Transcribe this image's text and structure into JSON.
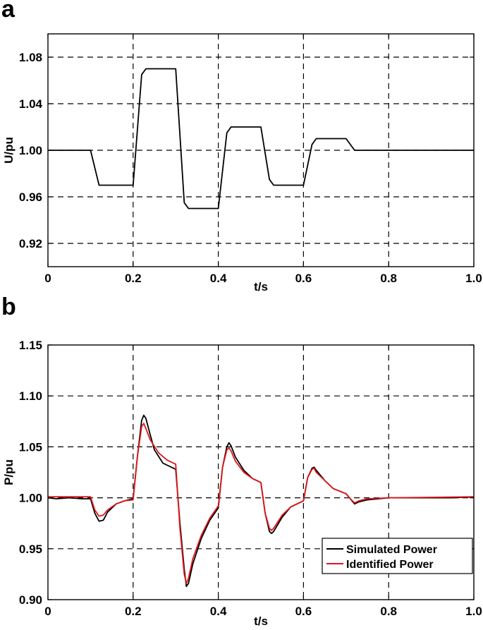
{
  "panels": {
    "a": {
      "letter": "a"
    },
    "b": {
      "letter": "b"
    }
  },
  "colors": {
    "simulated": "#000000",
    "identified": "#e0151b",
    "grid": "#000000"
  },
  "chart_data": [
    {
      "type": "line",
      "title": "",
      "xlabel": "t/s",
      "ylabel": "U/pu",
      "xlim": [
        0,
        1.0
      ],
      "ylim": [
        0.9,
        1.1
      ],
      "xticks": [
        "0",
        "0.2",
        "0.4",
        "0.6",
        "0.8",
        "1.0"
      ],
      "yticks": [
        "0.92",
        "0.96",
        "1.00",
        "1.04",
        "1.08"
      ],
      "grid": true,
      "series": [
        {
          "x": [
            0,
            0.1,
            0.12,
            0.2,
            0.22,
            0.23,
            0.3,
            0.32,
            0.33,
            0.4,
            0.42,
            0.43,
            0.5,
            0.52,
            0.53,
            0.6,
            0.62,
            0.63,
            0.7,
            0.72,
            0.8,
            1.0
          ],
          "y": [
            1.0,
            1.0,
            0.97,
            0.97,
            1.065,
            1.07,
            1.07,
            0.955,
            0.95,
            0.95,
            1.015,
            1.02,
            1.02,
            0.975,
            0.97,
            0.97,
            1.005,
            1.01,
            1.01,
            1.0,
            1.0,
            1.0
          ]
        }
      ]
    },
    {
      "type": "line",
      "title": "",
      "xlabel": "t/s",
      "ylabel": "P/pu",
      "xlim": [
        0,
        1.0
      ],
      "ylim": [
        0.9,
        1.15
      ],
      "xticks": [
        "0",
        "0.2",
        "0.4",
        "0.6",
        "0.8",
        "1.0"
      ],
      "yticks": [
        "0.90",
        "0.95",
        "1.00",
        "1.05",
        "1.10",
        "1.15"
      ],
      "grid": true,
      "legend_position": "bottom-right",
      "series": [
        {
          "name": "Simulated Power",
          "x": [
            0,
            0.02,
            0.05,
            0.08,
            0.1,
            0.11,
            0.12,
            0.13,
            0.14,
            0.16,
            0.18,
            0.2,
            0.21,
            0.22,
            0.225,
            0.23,
            0.24,
            0.25,
            0.27,
            0.3,
            0.31,
            0.32,
            0.325,
            0.33,
            0.34,
            0.36,
            0.38,
            0.4,
            0.41,
            0.42,
            0.425,
            0.43,
            0.44,
            0.46,
            0.48,
            0.5,
            0.51,
            0.52,
            0.525,
            0.53,
            0.55,
            0.57,
            0.6,
            0.61,
            0.62,
            0.625,
            0.63,
            0.65,
            0.67,
            0.7,
            0.71,
            0.72,
            0.73,
            0.75,
            0.8,
            0.85,
            0.9,
            0.95,
            1.0
          ],
          "y": [
            1.0,
            0.999,
            1.0,
            0.999,
            0.999,
            0.985,
            0.977,
            0.978,
            0.986,
            0.994,
            0.997,
            0.999,
            1.04,
            1.076,
            1.081,
            1.078,
            1.062,
            1.047,
            1.034,
            1.028,
            0.975,
            0.93,
            0.913,
            0.916,
            0.935,
            0.96,
            0.978,
            0.99,
            1.03,
            1.05,
            1.054,
            1.051,
            1.04,
            1.027,
            1.019,
            1.015,
            0.985,
            0.967,
            0.965,
            0.967,
            0.981,
            0.991,
            0.997,
            1.02,
            1.029,
            1.03,
            1.027,
            1.017,
            1.009,
            1.004,
            0.999,
            0.994,
            0.996,
            0.998,
            1.0,
            1.0,
            1.0,
            1.0,
            1.001
          ]
        },
        {
          "name": "Identified Power",
          "x": [
            0,
            0.05,
            0.1,
            0.11,
            0.12,
            0.13,
            0.14,
            0.16,
            0.18,
            0.2,
            0.21,
            0.22,
            0.225,
            0.23,
            0.24,
            0.26,
            0.28,
            0.3,
            0.31,
            0.32,
            0.325,
            0.33,
            0.34,
            0.36,
            0.38,
            0.4,
            0.41,
            0.42,
            0.425,
            0.43,
            0.44,
            0.46,
            0.48,
            0.5,
            0.51,
            0.52,
            0.525,
            0.53,
            0.55,
            0.57,
            0.6,
            0.61,
            0.62,
            0.625,
            0.63,
            0.65,
            0.67,
            0.7,
            0.71,
            0.72,
            0.73,
            0.75,
            0.8,
            1.0
          ],
          "y": [
            1.001,
            1.001,
            1.001,
            0.988,
            0.982,
            0.983,
            0.988,
            0.994,
            0.997,
            0.998,
            1.04,
            1.07,
            1.073,
            1.068,
            1.057,
            1.044,
            1.037,
            1.033,
            0.97,
            0.925,
            0.916,
            0.921,
            0.94,
            0.963,
            0.98,
            0.992,
            1.03,
            1.047,
            1.049,
            1.046,
            1.036,
            1.025,
            1.019,
            1.015,
            0.985,
            0.97,
            0.968,
            0.97,
            0.983,
            0.991,
            0.997,
            1.02,
            1.028,
            1.029,
            1.025,
            1.017,
            1.009,
            1.004,
            0.999,
            0.995,
            0.997,
            0.999,
            1.0,
            1.001
          ]
        }
      ]
    }
  ]
}
